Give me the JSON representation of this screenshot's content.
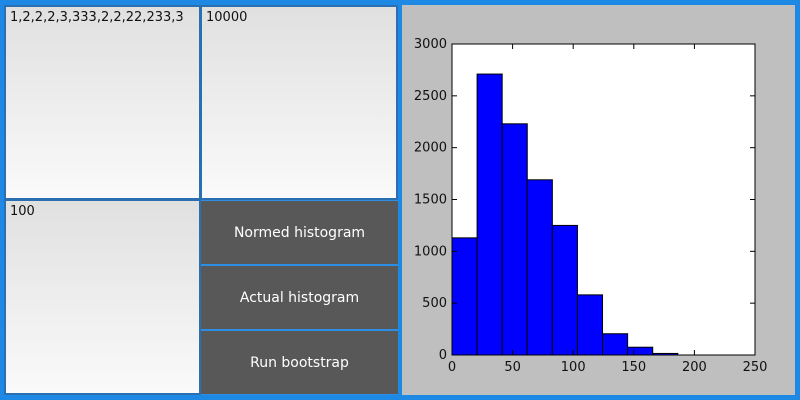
{
  "inputs": {
    "data_text": "1,2,2,2,3,333,2,2,22,233,3",
    "sample_count": "10000",
    "bins": "100"
  },
  "buttons": {
    "normed": "Normed histogram",
    "actual": "Actual histogram",
    "bootstrap": "Run bootstrap"
  },
  "chart_data": {
    "type": "bar",
    "title": "",
    "xlabel": "",
    "ylabel": "",
    "bins": [
      {
        "start": 0,
        "end": 20.7,
        "count": 1130
      },
      {
        "start": 20.7,
        "end": 41.4,
        "count": 2710
      },
      {
        "start": 41.4,
        "end": 62.1,
        "count": 2230
      },
      {
        "start": 62.1,
        "end": 82.8,
        "count": 1690
      },
      {
        "start": 82.8,
        "end": 103.5,
        "count": 1250
      },
      {
        "start": 103.5,
        "end": 124.2,
        "count": 580
      },
      {
        "start": 124.2,
        "end": 144.9,
        "count": 205
      },
      {
        "start": 144.9,
        "end": 165.6,
        "count": 75
      },
      {
        "start": 165.6,
        "end": 186.3,
        "count": 15
      }
    ],
    "xlim": [
      0,
      250
    ],
    "ylim": [
      0,
      3000
    ],
    "xticks": [
      0,
      50,
      100,
      150,
      200,
      250
    ],
    "yticks": [
      0,
      500,
      1000,
      1500,
      2000,
      2500,
      3000
    ],
    "bar_color": "#0000ff",
    "grid": false,
    "legend": "none"
  }
}
